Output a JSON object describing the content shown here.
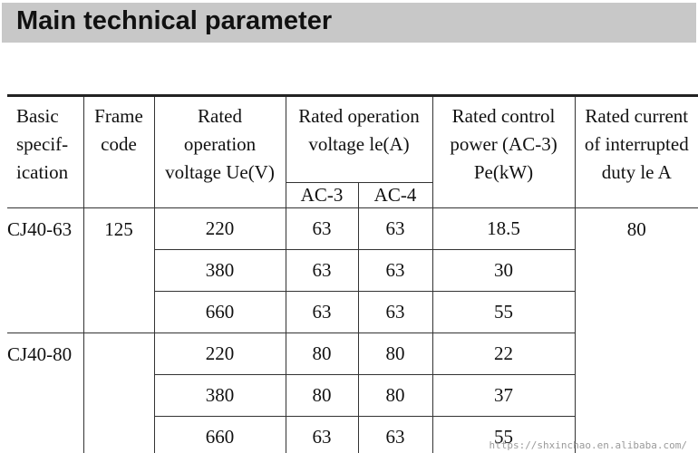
{
  "title": "Main technical parameter",
  "table": {
    "headers": {
      "basic_spec": "Basic\nspecif-\nication",
      "frame_code": "Frame\ncode",
      "rated_voltage": "Rated\noperation\nvoltage Ue(V)",
      "rated_current": "Rated operation\nvoltage le(A)",
      "rated_power": "Rated control\npower (AC-3)\nPe(kW)",
      "interrupted_current": "Rated current\nof interrupted\nduty le A",
      "ac3": "AC-3",
      "ac4": "AC-4"
    },
    "groups": [
      {
        "spec": "CJ40-63",
        "frame_code": "125",
        "interrupted_current": "80",
        "rows": [
          {
            "voltage": "220",
            "ac3": "63",
            "ac4": "63",
            "power": "18.5"
          },
          {
            "voltage": "380",
            "ac3": "63",
            "ac4": "63",
            "power": "30"
          },
          {
            "voltage": "660",
            "ac3": "63",
            "ac4": "63",
            "power": "55"
          }
        ]
      },
      {
        "spec": "CJ40-80",
        "frame_code": "",
        "interrupted_current": "",
        "rows": [
          {
            "voltage": "220",
            "ac3": "80",
            "ac4": "80",
            "power": "22"
          },
          {
            "voltage": "380",
            "ac3": "80",
            "ac4": "80",
            "power": "37"
          },
          {
            "voltage": "660",
            "ac3": "63",
            "ac4": "63",
            "power": "55"
          }
        ]
      }
    ]
  },
  "watermark": "https://shxinchao.en.alibaba.com/"
}
